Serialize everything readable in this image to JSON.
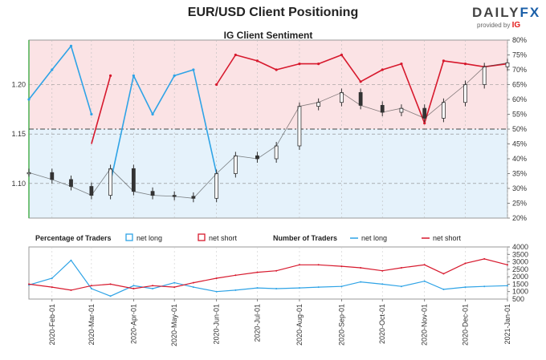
{
  "title": "EUR/USD Client Positioning",
  "logo": {
    "brand": "DAILY",
    "brand_fx": "FX",
    "provided_by": "provided by",
    "ig": "IG"
  },
  "colors": {
    "net_long": "#2ea3e6",
    "net_short": "#d7192d",
    "short_zone": "#fbe3e5",
    "long_zone": "#e5f2fb",
    "candle": "#333333"
  },
  "chart_data": [
    {
      "type": "line",
      "title": "IG Client Sentiment",
      "x": [
        "2020-01-15",
        "2020-02-01",
        "2020-02-15",
        "2020-03-01",
        "2020-03-15",
        "2020-04-01",
        "2020-04-15",
        "2020-05-01",
        "2020-05-15",
        "2020-06-01",
        "2020-06-15",
        "2020-07-01",
        "2020-07-15",
        "2020-08-01",
        "2020-08-15",
        "2020-09-01",
        "2020-09-15",
        "2020-10-01",
        "2020-10-15",
        "2020-11-01",
        "2020-11-15",
        "2020-12-01",
        "2020-12-15",
        "2021-01-01"
      ],
      "price_axis": {
        "ylim": [
          1.065,
          1.245
        ],
        "ticks": [
          "1.10",
          "1.15",
          "1.20"
        ]
      },
      "sentiment_axis": {
        "ylim": [
          20,
          80
        ],
        "ticks": [
          "20%",
          "25%",
          "30%",
          "35%",
          "40%",
          "45%",
          "50%",
          "55%",
          "60%",
          "65%",
          "70%",
          "75%",
          "80%"
        ]
      },
      "eurusd_price": [
        1.111,
        1.104,
        1.097,
        1.088,
        1.115,
        1.092,
        1.088,
        1.087,
        1.085,
        1.11,
        1.128,
        1.125,
        1.138,
        1.178,
        1.182,
        1.192,
        1.179,
        1.172,
        1.176,
        1.166,
        1.182,
        1.2,
        1.218,
        1.222
      ],
      "series": [
        {
          "name": "net long",
          "values": [
            60,
            70,
            78,
            55,
            32,
            68,
            55,
            68,
            70,
            35,
            25,
            27,
            30,
            28,
            28,
            25,
            34,
            30,
            28,
            48,
            27,
            28,
            29,
            28
          ]
        },
        {
          "name": "net short",
          "values": [
            40,
            30,
            22,
            45,
            68,
            32,
            45,
            32,
            30,
            65,
            75,
            73,
            70,
            72,
            72,
            75,
            66,
            70,
            72,
            52,
            73,
            72,
            71,
            72
          ]
        }
      ]
    },
    {
      "type": "line",
      "legend": {
        "percentage_label": "Percentage of Traders",
        "number_label": "Number of Traders",
        "net_long": "net long",
        "net_short": "net short"
      },
      "ylim": [
        500,
        4000
      ],
      "yticks": [
        "1000",
        "1500",
        "2000",
        "2500",
        "3000",
        "3500",
        "4000"
      ],
      "ytick_500": "500",
      "series": [
        {
          "name": "net long",
          "values": [
            1450,
            1900,
            3100,
            1200,
            700,
            1400,
            1200,
            1600,
            1300,
            1000,
            1100,
            1250,
            1200,
            1250,
            1300,
            1350,
            1650,
            1500,
            1350,
            1700,
            1150,
            1300,
            1350,
            1400
          ]
        },
        {
          "name": "net short",
          "values": [
            1500,
            1300,
            1100,
            1400,
            1500,
            1200,
            1400,
            1300,
            1600,
            1900,
            2100,
            2300,
            2400,
            2800,
            2800,
            2700,
            2600,
            2400,
            2600,
            2800,
            2200,
            2900,
            3200,
            2800
          ]
        }
      ],
      "xtick_labels": [
        "2020-Feb-01",
        "2020-Mar-01",
        "2020-Apr-01",
        "2020-May-01",
        "2020-Jun-01",
        "2020-Jul-01",
        "2020-Aug-01",
        "2020-Sep-01",
        "2020-Oct-01",
        "2020-Nov-01",
        "2020-Dec-01",
        "2021-Jan-01"
      ]
    }
  ]
}
